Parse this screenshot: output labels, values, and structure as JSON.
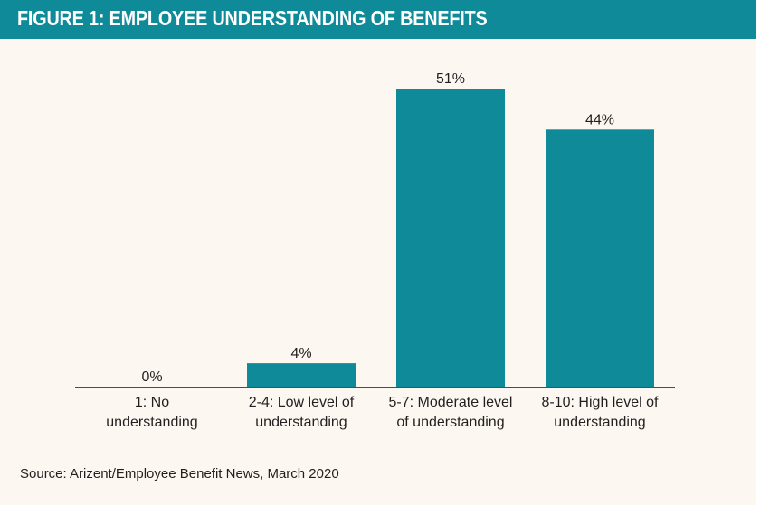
{
  "header": {
    "title": "FIGURE 1: EMPLOYEE UNDERSTANDING OF BENEFITS"
  },
  "colors": {
    "title_bar": "#0e8a99",
    "bar": "#0e8a99",
    "background": "#fcf8f1",
    "text": "#231f20"
  },
  "chart_data": {
    "type": "bar",
    "categories": [
      "1: No\nunderstanding",
      "2-4: Low level of\nunderstanding",
      "5-7: Moderate level\nof understanding",
      "8-10: High level of\nunderstanding"
    ],
    "values": [
      0,
      4,
      51,
      44
    ],
    "data_labels": [
      "0%",
      "4%",
      "51%",
      "44%"
    ],
    "title": "FIGURE 1: EMPLOYEE UNDERSTANDING OF BENEFITS",
    "xlabel": "",
    "ylabel": "",
    "ylim": [
      0,
      51
    ],
    "grid": false,
    "legend": "none"
  },
  "source": "Source: Arizent/Employee Benefit News, March 2020"
}
